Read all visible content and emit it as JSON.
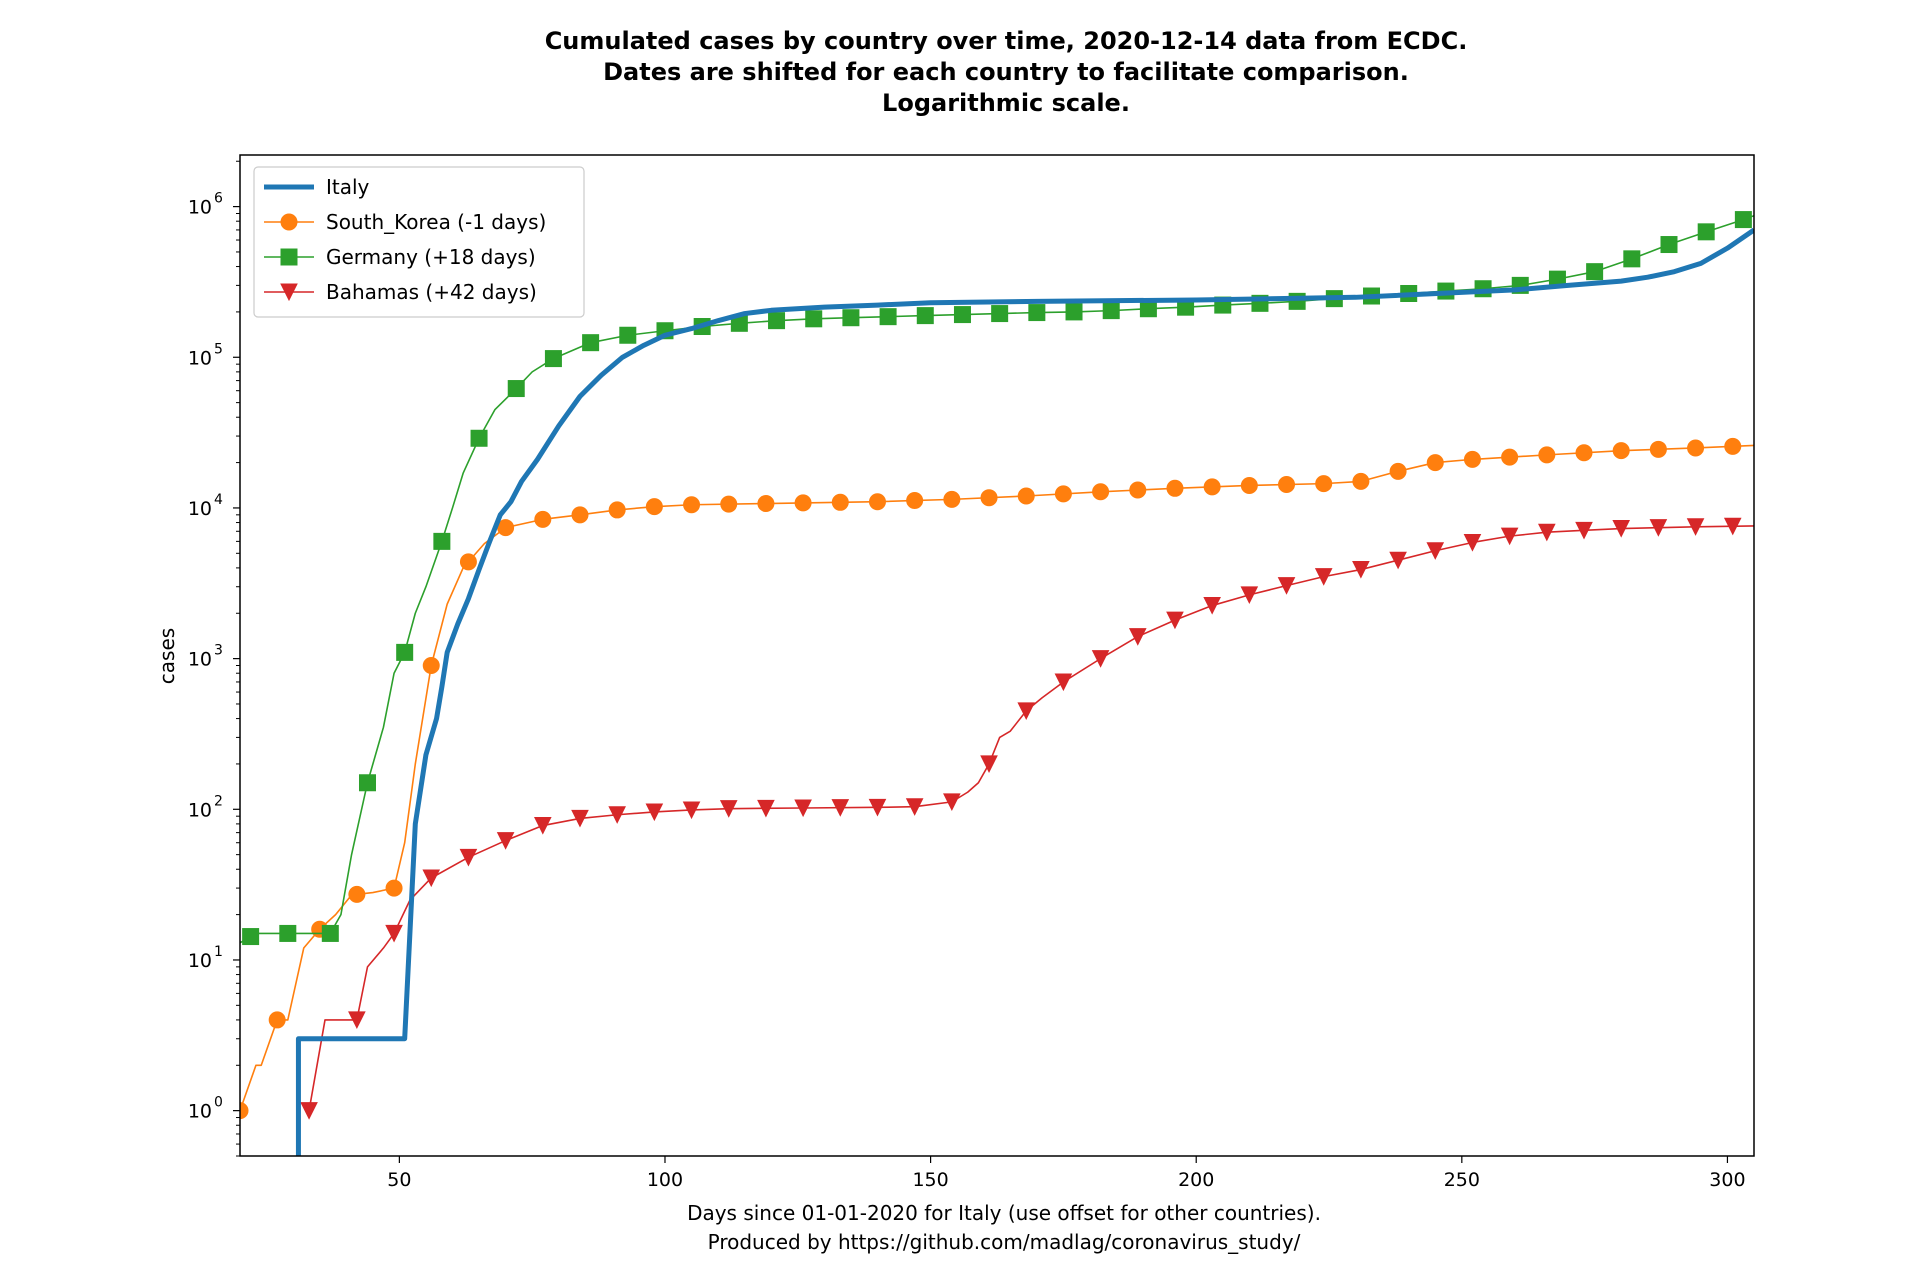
{
  "chart_data": {
    "type": "line",
    "title_lines": [
      "Cumulated cases by country over time, 2020-12-14 data from ECDC.",
      "Dates are shifted for each country to facilitate comparison.",
      "Logarithmic scale."
    ],
    "xlabel_lines": [
      "Days since 01-01-2020 for Italy (use offset for other countries).",
      "Produced by https://github.com/madlag/coronavirus_study/"
    ],
    "ylabel": "cases",
    "yscale": "log",
    "xlim": [
      20,
      305
    ],
    "ylim": [
      0.5,
      2200000
    ],
    "x_ticks": [
      50,
      100,
      150,
      200,
      250,
      300
    ],
    "y_ticks": [
      {
        "value": 1,
        "base": "10",
        "exp": "0"
      },
      {
        "value": 10,
        "base": "10",
        "exp": "1"
      },
      {
        "value": 100,
        "base": "10",
        "exp": "2"
      },
      {
        "value": 1000,
        "base": "10",
        "exp": "3"
      },
      {
        "value": 10000,
        "base": "10",
        "exp": "4"
      },
      {
        "value": 100000,
        "base": "10",
        "exp": "5"
      },
      {
        "value": 1000000,
        "base": "10",
        "exp": "6"
      }
    ],
    "legend_position": "upper-left",
    "series": [
      {
        "name": "Italy",
        "color": "#1f77b4",
        "marker": "none",
        "points": [
          [
            31,
            0.3
          ],
          [
            31,
            3
          ],
          [
            51,
            3
          ],
          [
            53,
            80
          ],
          [
            55,
            230
          ],
          [
            57,
            400
          ],
          [
            58,
            650
          ],
          [
            59,
            1100
          ],
          [
            61,
            1700
          ],
          [
            63,
            2500
          ],
          [
            65,
            3900
          ],
          [
            67,
            6000
          ],
          [
            69,
            9000
          ],
          [
            71,
            11000
          ],
          [
            73,
            15000
          ],
          [
            76,
            21000
          ],
          [
            80,
            35000
          ],
          [
            84,
            55000
          ],
          [
            88,
            76000
          ],
          [
            92,
            100000
          ],
          [
            96,
            120000
          ],
          [
            100,
            140000
          ],
          [
            105,
            155000
          ],
          [
            110,
            175000
          ],
          [
            115,
            195000
          ],
          [
            120,
            205000
          ],
          [
            130,
            215000
          ],
          [
            140,
            222000
          ],
          [
            150,
            230000
          ],
          [
            170,
            235000
          ],
          [
            200,
            240000
          ],
          [
            230,
            250000
          ],
          [
            260,
            280000
          ],
          [
            270,
            300000
          ],
          [
            280,
            320000
          ],
          [
            285,
            340000
          ],
          [
            290,
            370000
          ],
          [
            295,
            420000
          ],
          [
            300,
            530000
          ],
          [
            305,
            700000
          ]
        ]
      },
      {
        "name": "South_Korea (-1 days)",
        "color": "#ff7f0e",
        "marker": "circle",
        "points": [
          [
            20,
            1
          ],
          [
            23,
            2
          ],
          [
            24,
            2
          ],
          [
            27,
            4
          ],
          [
            29,
            4
          ],
          [
            32,
            12
          ],
          [
            35,
            16
          ],
          [
            38,
            20
          ],
          [
            41,
            27
          ],
          [
            45,
            28
          ],
          [
            49,
            30
          ],
          [
            51,
            60
          ],
          [
            53,
            200
          ],
          [
            56,
            900
          ],
          [
            59,
            2300
          ],
          [
            62,
            4000
          ],
          [
            66,
            5800
          ],
          [
            70,
            7400
          ],
          [
            77,
            8400
          ],
          [
            84,
            9000
          ],
          [
            91,
            9700
          ],
          [
            98,
            10200
          ],
          [
            105,
            10500
          ],
          [
            119,
            10700
          ],
          [
            140,
            11000
          ],
          [
            154,
            11400
          ],
          [
            168,
            12000
          ],
          [
            182,
            12800
          ],
          [
            196,
            13500
          ],
          [
            210,
            14100
          ],
          [
            224,
            14500
          ],
          [
            231,
            15000
          ],
          [
            238,
            17500
          ],
          [
            245,
            20000
          ],
          [
            252,
            21000
          ],
          [
            266,
            22500
          ],
          [
            280,
            24000
          ],
          [
            294,
            25000
          ],
          [
            305,
            26000
          ]
        ],
        "marker_x": [
          20,
          27,
          35,
          42,
          49,
          56,
          63,
          70,
          77,
          84,
          91,
          98,
          105,
          112,
          119,
          126,
          133,
          140,
          147,
          154,
          161,
          168,
          175,
          182,
          189,
          196,
          203,
          210,
          217,
          224,
          231,
          238,
          245,
          252,
          259,
          266,
          273,
          280,
          287,
          294,
          301
        ]
      },
      {
        "name": "Germany (+18 days)",
        "color": "#2ca02c",
        "marker": "square",
        "points": [
          [
            20,
            13
          ],
          [
            23,
            15
          ],
          [
            31,
            15
          ],
          [
            37,
            15
          ],
          [
            39,
            20
          ],
          [
            41,
            50
          ],
          [
            44,
            150
          ],
          [
            47,
            350
          ],
          [
            49,
            800
          ],
          [
            51,
            1100
          ],
          [
            53,
            2000
          ],
          [
            55,
            3000
          ],
          [
            58,
            6000
          ],
          [
            60,
            10000
          ],
          [
            62,
            17000
          ],
          [
            65,
            29000
          ],
          [
            68,
            45000
          ],
          [
            72,
            62000
          ],
          [
            75,
            80000
          ],
          [
            79,
            98000
          ],
          [
            86,
            125000
          ],
          [
            93,
            140000
          ],
          [
            100,
            150000
          ],
          [
            107,
            160000
          ],
          [
            114,
            168000
          ],
          [
            121,
            175000
          ],
          [
            128,
            180000
          ],
          [
            135,
            183000
          ],
          [
            142,
            186000
          ],
          [
            149,
            189000
          ],
          [
            156,
            192000
          ],
          [
            163,
            195000
          ],
          [
            170,
            198000
          ],
          [
            177,
            200000
          ],
          [
            184,
            204000
          ],
          [
            191,
            210000
          ],
          [
            198,
            215000
          ],
          [
            205,
            222000
          ],
          [
            212,
            228000
          ],
          [
            219,
            235000
          ],
          [
            226,
            245000
          ],
          [
            233,
            255000
          ],
          [
            240,
            265000
          ],
          [
            247,
            275000
          ],
          [
            254,
            285000
          ],
          [
            261,
            300000
          ],
          [
            268,
            330000
          ],
          [
            275,
            370000
          ],
          [
            282,
            450000
          ],
          [
            289,
            560000
          ],
          [
            296,
            680000
          ],
          [
            303,
            820000
          ],
          [
            305,
            870000
          ]
        ],
        "marker_x": [
          22,
          29,
          37,
          44,
          51,
          58,
          65,
          72,
          79,
          86,
          93,
          100,
          107,
          114,
          121,
          128,
          135,
          142,
          149,
          156,
          163,
          170,
          177,
          184,
          191,
          198,
          205,
          212,
          219,
          226,
          233,
          240,
          247,
          254,
          261,
          268,
          275,
          282,
          289,
          296,
          303
        ]
      },
      {
        "name": "Bahamas (+42 days)",
        "color": "#d62728",
        "marker": "triangle-down",
        "points": [
          [
            33,
            1
          ],
          [
            36,
            4
          ],
          [
            39,
            4
          ],
          [
            42,
            4
          ],
          [
            44,
            9
          ],
          [
            47,
            12
          ],
          [
            49,
            15
          ],
          [
            52,
            25
          ],
          [
            56,
            35
          ],
          [
            63,
            48
          ],
          [
            70,
            62
          ],
          [
            77,
            78
          ],
          [
            84,
            87
          ],
          [
            91,
            92
          ],
          [
            98,
            96
          ],
          [
            105,
            99
          ],
          [
            112,
            101
          ],
          [
            126,
            102
          ],
          [
            140,
            103
          ],
          [
            147,
            104
          ],
          [
            154,
            112
          ],
          [
            157,
            130
          ],
          [
            159,
            150
          ],
          [
            161,
            200
          ],
          [
            163,
            300
          ],
          [
            165,
            330
          ],
          [
            168,
            450
          ],
          [
            171,
            550
          ],
          [
            175,
            700
          ],
          [
            182,
            1000
          ],
          [
            189,
            1400
          ],
          [
            196,
            1800
          ],
          [
            203,
            2250
          ],
          [
            210,
            2650
          ],
          [
            217,
            3050
          ],
          [
            224,
            3500
          ],
          [
            231,
            3900
          ],
          [
            238,
            4500
          ],
          [
            245,
            5200
          ],
          [
            252,
            5900
          ],
          [
            259,
            6500
          ],
          [
            266,
            6900
          ],
          [
            273,
            7100
          ],
          [
            280,
            7300
          ],
          [
            287,
            7400
          ],
          [
            294,
            7500
          ],
          [
            305,
            7600
          ]
        ],
        "marker_x": [
          33,
          42,
          49,
          56,
          63,
          70,
          77,
          84,
          91,
          98,
          105,
          112,
          119,
          126,
          133,
          140,
          147,
          154,
          161,
          168,
          175,
          182,
          189,
          196,
          203,
          210,
          217,
          224,
          231,
          238,
          245,
          252,
          259,
          266,
          273,
          280,
          287,
          294,
          301
        ]
      }
    ]
  }
}
